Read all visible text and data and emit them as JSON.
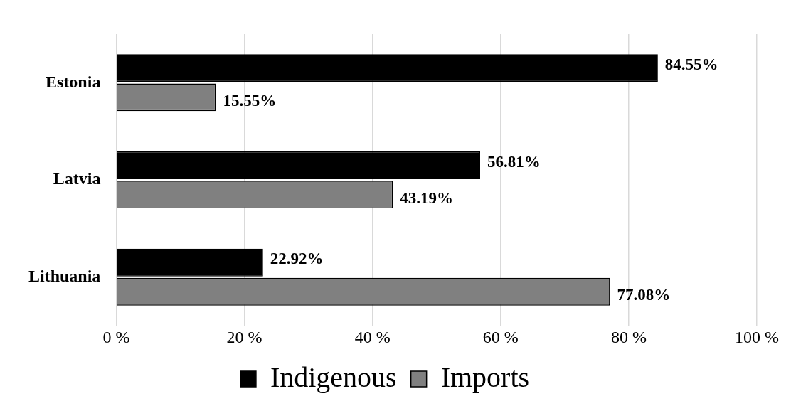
{
  "chart_data": {
    "type": "bar",
    "orientation": "horizontal",
    "categories": [
      "Estonia",
      "Latvia",
      "Lithuania"
    ],
    "series": [
      {
        "name": "Indigenous",
        "color": "#000000",
        "values": [
          84.55,
          56.81,
          22.92
        ],
        "value_labels": [
          "84.55%",
          "56.81%",
          "22.92%"
        ]
      },
      {
        "name": "Imports",
        "color": "#808080",
        "values": [
          15.55,
          43.19,
          77.08
        ],
        "value_labels": [
          "15.55%",
          "43.19%",
          "77.08%"
        ]
      }
    ],
    "xlim": [
      0,
      100
    ],
    "xticks": [
      {
        "value": 0,
        "label": "0 %"
      },
      {
        "value": 20,
        "label": "20 %"
      },
      {
        "value": 40,
        "label": "40 %"
      },
      {
        "value": 60,
        "label": "60 %"
      },
      {
        "value": 80,
        "label": "80 %"
      },
      {
        "value": 100,
        "label": "100 %"
      }
    ],
    "grid": "x",
    "legend": "bottom"
  }
}
